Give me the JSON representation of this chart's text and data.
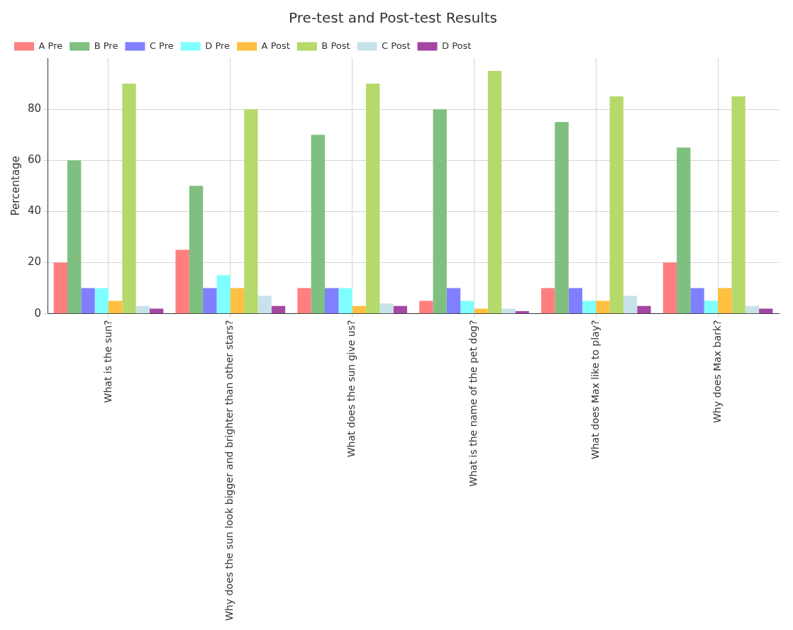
{
  "chart_data": {
    "type": "bar",
    "title": "Pre-test and Post-test Results",
    "ylabel": "Percentage",
    "categories": [
      "What is the sun?",
      "Why does the sun look bigger and brighter than other stars?",
      "What does the sun give us?",
      "What is the name of the pet dog?",
      "What does Max like to play?",
      "Why does Max bark?"
    ],
    "series": [
      {
        "name": "A Pre",
        "color": "#ff7f7f",
        "values": [
          20,
          25,
          10,
          5,
          10,
          20
        ]
      },
      {
        "name": "B Pre",
        "color": "#7fbf7f",
        "values": [
          60,
          50,
          70,
          80,
          75,
          65
        ]
      },
      {
        "name": "C Pre",
        "color": "#7f7fff",
        "values": [
          10,
          10,
          10,
          10,
          10,
          10
        ]
      },
      {
        "name": "D Pre",
        "color": "#7fffff",
        "values": [
          10,
          15,
          10,
          5,
          5,
          5
        ]
      },
      {
        "name": "A Post",
        "color": "#ffbf40",
        "values": [
          5,
          10,
          3,
          2,
          5,
          10
        ]
      },
      {
        "name": "B Post",
        "color": "#b5d96a",
        "values": [
          90,
          80,
          90,
          95,
          85,
          85
        ]
      },
      {
        "name": "C Post",
        "color": "#c8e2ea",
        "values": [
          3,
          7,
          4,
          2,
          7,
          3
        ]
      },
      {
        "name": "D Post",
        "color": "#a347a3",
        "values": [
          2,
          3,
          3,
          1,
          3,
          2
        ]
      }
    ],
    "ylim": [
      0,
      100
    ],
    "yticks": [
      0,
      20,
      40,
      60,
      80
    ],
    "grid": true,
    "legend": "top left"
  }
}
